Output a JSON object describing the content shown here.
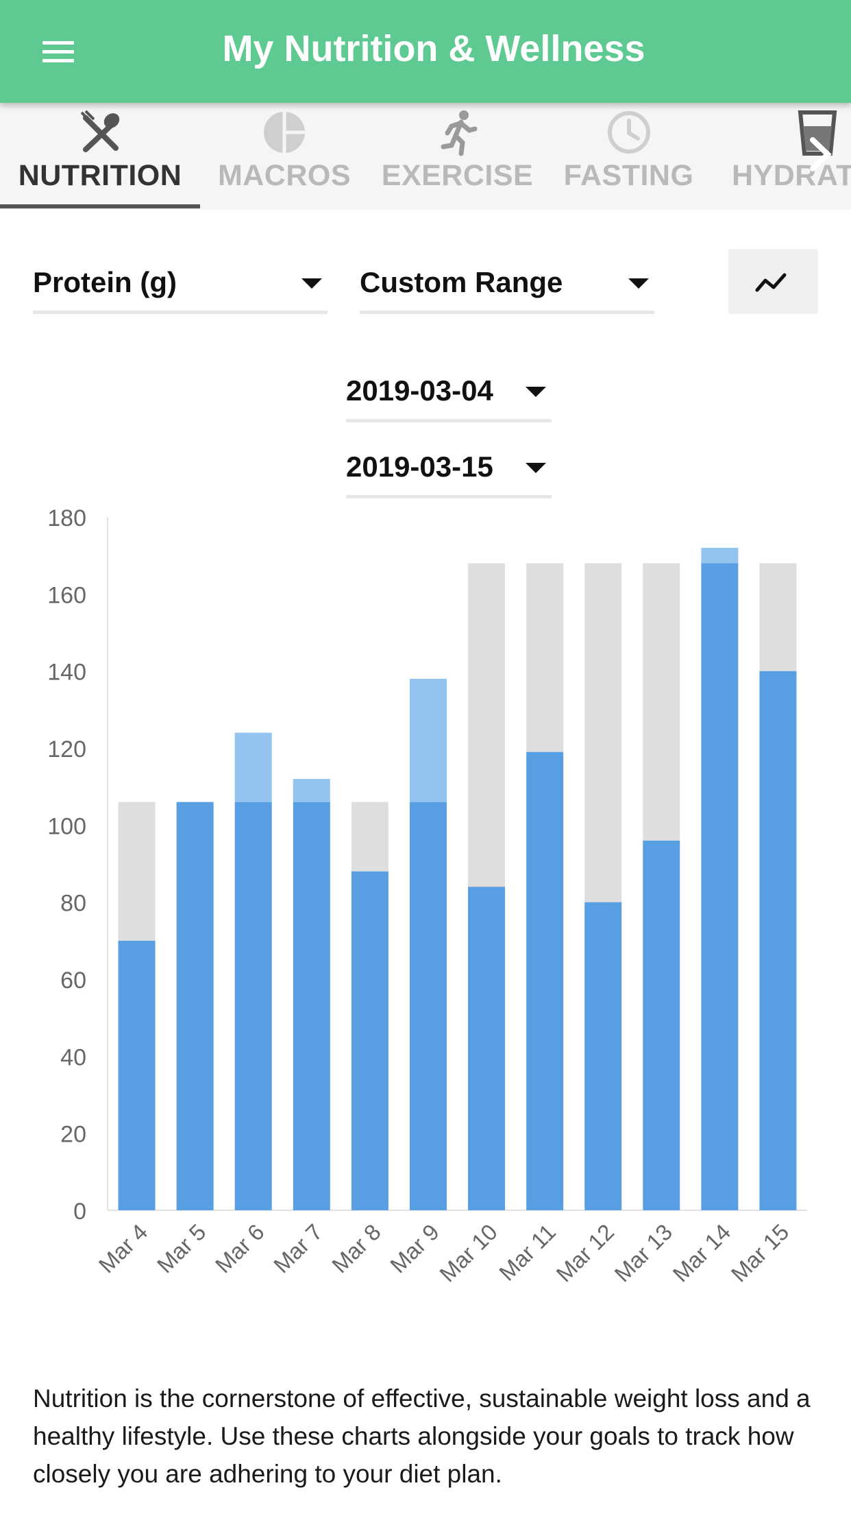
{
  "header": {
    "title": "My Nutrition & Wellness"
  },
  "tabs": [
    {
      "label": "NUTRITION",
      "icon": "fork-spoon-icon",
      "active": true
    },
    {
      "label": "MACROS",
      "icon": "pie-chart-icon",
      "active": false
    },
    {
      "label": "EXERCISE",
      "icon": "running-person-icon",
      "active": false
    },
    {
      "label": "FASTING",
      "icon": "clock-icon",
      "active": false
    },
    {
      "label": "HYDRATION",
      "icon": "glass-icon",
      "active": false
    }
  ],
  "filters": {
    "metric": "Protein (g)",
    "range": "Custom Range",
    "start_date": "2019-03-04",
    "end_date": "2019-03-15",
    "chart_type_icon": "line-chart-icon"
  },
  "colors": {
    "header_green": "#5ec991",
    "intake_blue": "#579ee3",
    "excess_blue": "#93c4f0",
    "goal_gray": "#dedede"
  },
  "chart_data": {
    "type": "bar",
    "stacked": true,
    "categories": [
      "Mar 4",
      "Mar 5",
      "Mar 6",
      "Mar 7",
      "Mar 8",
      "Mar 9",
      "Mar 10",
      "Mar 11",
      "Mar 12",
      "Mar 13",
      "Mar 14",
      "Mar 15"
    ],
    "goal": [
      106,
      106,
      106,
      106,
      106,
      106,
      168,
      168,
      168,
      168,
      168,
      168
    ],
    "values": [
      70,
      106,
      124,
      112,
      88,
      138,
      84,
      119,
      80,
      96,
      172,
      140
    ],
    "ylim": [
      0,
      180
    ],
    "yticks": [
      0,
      20,
      40,
      60,
      80,
      100,
      120,
      140,
      160,
      180
    ],
    "grid": false,
    "legend": "none"
  },
  "description": "Nutrition is the cornerstone of effective, sustainable weight loss and a healthy lifestyle. Use these charts alongside your goals to track how closely you are adhering to your diet plan."
}
